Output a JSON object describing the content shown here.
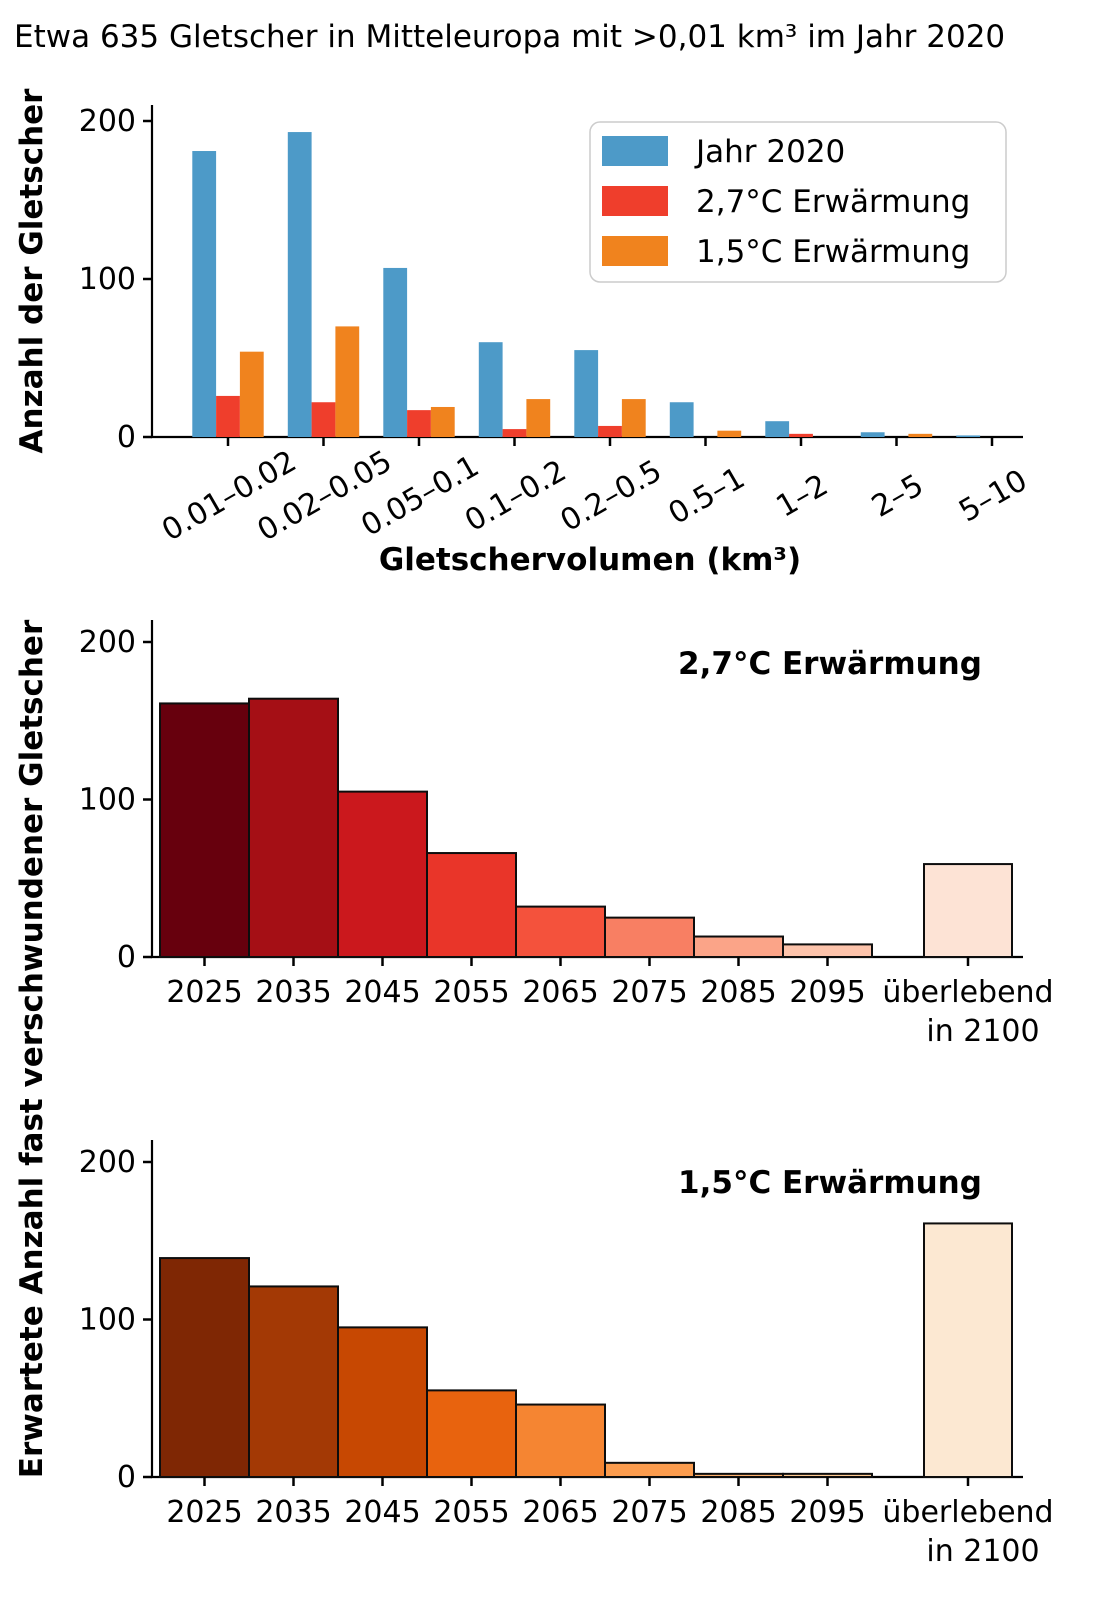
{
  "title": "Etwa 635 Gletscher in Mitteleuropa mit >0,01 km³ im Jahr 2020",
  "shared_ylabel": "Erwartete Anzahl fast verschwundener Gletscher",
  "chart_data": [
    {
      "type": "bar",
      "name": "gletscher-volumen-verteilung",
      "xlabel": "Gletschervolumen (km³)",
      "ylabel": "Anzahl der Gletscher",
      "ylim": [
        0,
        210
      ],
      "yticks": [
        0,
        100,
        200
      ],
      "grid": false,
      "legend_position": "upper right",
      "categories": [
        "0.01–0.02",
        "0.02–0.05",
        "0.05–0.1",
        "0.1–0.2",
        "0.2–0.5",
        "0.5–1",
        "1–2",
        "2–5",
        "5–10"
      ],
      "series": [
        {
          "name": "Jahr 2020",
          "color": "#4d9ac8",
          "values": [
            181,
            193,
            107,
            60,
            55,
            22,
            10,
            3,
            1
          ]
        },
        {
          "name": "2,7°C Erwärmung",
          "color": "#ef3e2c",
          "values": [
            26,
            22,
            17,
            5,
            7,
            0,
            2,
            0,
            0
          ]
        },
        {
          "name": "1,5°C Erwärmung",
          "color": "#f0831e",
          "values": [
            54,
            70,
            19,
            24,
            24,
            4,
            0,
            2,
            0
          ]
        }
      ]
    },
    {
      "type": "bar",
      "name": "verschwundene-gletscher-2-7C",
      "annotation": "2,7°C Erwärmung",
      "ylim": [
        0,
        214
      ],
      "yticks": [
        0,
        100,
        200
      ],
      "grid": false,
      "categories": [
        "2025",
        "2035",
        "2045",
        "2055",
        "2065",
        "2075",
        "2085",
        "2095",
        "überlebend"
      ],
      "last_category_line2": "in 2100",
      "values": [
        161,
        164,
        105,
        66,
        32,
        25,
        13,
        8,
        59
      ],
      "bar_colors": [
        "#67000d",
        "#a50f15",
        "#cb181d",
        "#e93529",
        "#f4523c",
        "#f87f63",
        "#fba488",
        "#fcc3ab",
        "#fde3d5"
      ]
    },
    {
      "type": "bar",
      "name": "verschwundene-gletscher-1-5C",
      "annotation": "1,5°C Erwärmung",
      "ylim": [
        0,
        214
      ],
      "yticks": [
        0,
        100,
        200
      ],
      "grid": false,
      "categories": [
        "2025",
        "2035",
        "2045",
        "2055",
        "2065",
        "2075",
        "2085",
        "2095",
        "überlebend"
      ],
      "last_category_line2": "in 2100",
      "values": [
        139,
        121,
        95,
        55,
        46,
        9,
        2,
        2,
        161
      ],
      "bar_colors": [
        "#7f2704",
        "#a33905",
        "#c74802",
        "#e8630e",
        "#f58532",
        "#fb9c4e",
        "#fcae6b",
        "#fdc890",
        "#fce8d2"
      ]
    }
  ]
}
